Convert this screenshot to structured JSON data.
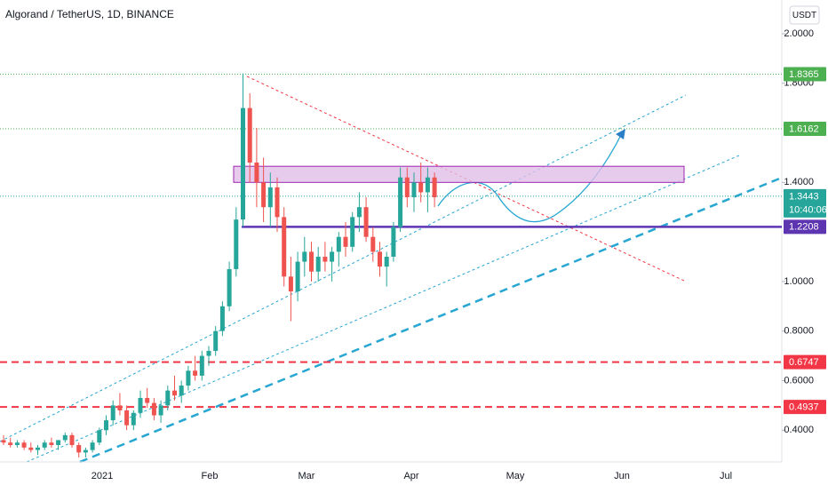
{
  "chart_data": {
    "type": "candlestick",
    "title": "Algorand / TetherUS, 1D, BINANCE",
    "currency": "USDT",
    "countdown": "10:40:06",
    "up_color": "#26a69a",
    "down_color": "#ef5350",
    "grid": false,
    "ylim": [
      0.272,
      2.136
    ],
    "yticks": [
      {
        "value": 0.4,
        "label": "0.4000"
      },
      {
        "value": 0.6,
        "label": "0.6000"
      },
      {
        "value": 0.8,
        "label": "0.8000"
      },
      {
        "value": 1.0,
        "label": "1.0000"
      },
      {
        "value": 1.4,
        "label": "1.4000"
      },
      {
        "value": 1.8,
        "label": "1.8000"
      },
      {
        "value": 2.0,
        "label": "2.0000"
      }
    ],
    "time_labels": [
      "2021",
      "Feb",
      "Mar",
      "Apr",
      "May",
      "Jun",
      "Jul"
    ],
    "zone": {
      "values": [
        1.4,
        1.465
      ],
      "color": "#e1bee7"
    },
    "levels": [
      {
        "value": 1.8365,
        "color": "#4caf50",
        "style": "dotted"
      },
      {
        "value": 1.6162,
        "color": "#4caf50",
        "style": "dotted"
      },
      {
        "value": 1.3443,
        "color": "#26a69a",
        "style": "dotted"
      },
      {
        "value": 1.2208,
        "color": "#5e35b1",
        "style": "solid"
      },
      {
        "value": 0.6747,
        "color": "#f23645",
        "style": "dashed"
      },
      {
        "value": 0.4937,
        "color": "#f23645",
        "style": "dashed"
      }
    ],
    "candles": [
      [
        0.36,
        0.38,
        0.34,
        0.35
      ],
      [
        0.35,
        0.37,
        0.33,
        0.34
      ],
      [
        0.34,
        0.36,
        0.33,
        0.35
      ],
      [
        0.35,
        0.36,
        0.32,
        0.33
      ],
      [
        0.33,
        0.35,
        0.31,
        0.32
      ],
      [
        0.32,
        0.34,
        0.3,
        0.33
      ],
      [
        0.33,
        0.36,
        0.32,
        0.35
      ],
      [
        0.35,
        0.37,
        0.33,
        0.34
      ],
      [
        0.34,
        0.36,
        0.32,
        0.36
      ],
      [
        0.36,
        0.39,
        0.35,
        0.38
      ],
      [
        0.38,
        0.39,
        0.33,
        0.34
      ],
      [
        0.34,
        0.35,
        0.29,
        0.31
      ],
      [
        0.31,
        0.33,
        0.29,
        0.32
      ],
      [
        0.32,
        0.36,
        0.31,
        0.35
      ],
      [
        0.35,
        0.41,
        0.34,
        0.4
      ],
      [
        0.4,
        0.46,
        0.38,
        0.44
      ],
      [
        0.44,
        0.52,
        0.42,
        0.5
      ],
      [
        0.5,
        0.55,
        0.46,
        0.48
      ],
      [
        0.48,
        0.5,
        0.4,
        0.42
      ],
      [
        0.42,
        0.48,
        0.4,
        0.47
      ],
      [
        0.47,
        0.56,
        0.45,
        0.53
      ],
      [
        0.53,
        0.57,
        0.49,
        0.51
      ],
      [
        0.51,
        0.53,
        0.44,
        0.46
      ],
      [
        0.46,
        0.52,
        0.43,
        0.5
      ],
      [
        0.5,
        0.58,
        0.48,
        0.56
      ],
      [
        0.56,
        0.62,
        0.52,
        0.54
      ],
      [
        0.54,
        0.6,
        0.51,
        0.58
      ],
      [
        0.58,
        0.66,
        0.56,
        0.64
      ],
      [
        0.64,
        0.7,
        0.6,
        0.62
      ],
      [
        0.62,
        0.72,
        0.6,
        0.7
      ],
      [
        0.7,
        0.74,
        0.66,
        0.72
      ],
      [
        0.72,
        0.82,
        0.7,
        0.8
      ],
      [
        0.8,
        0.92,
        0.78,
        0.9
      ],
      [
        0.9,
        1.08,
        0.88,
        1.05
      ],
      [
        1.05,
        1.3,
        1.02,
        1.25
      ],
      [
        1.25,
        1.84,
        1.22,
        1.7
      ],
      [
        1.7,
        1.76,
        1.4,
        1.48
      ],
      [
        1.48,
        1.62,
        1.3,
        1.4
      ],
      [
        1.4,
        1.5,
        1.24,
        1.3
      ],
      [
        1.3,
        1.44,
        1.22,
        1.38
      ],
      [
        1.38,
        1.42,
        1.2,
        1.26
      ],
      [
        1.26,
        1.3,
        0.98,
        1.02
      ],
      [
        1.02,
        1.1,
        0.84,
        0.96
      ],
      [
        0.96,
        1.12,
        0.92,
        1.08
      ],
      [
        1.08,
        1.18,
        1.02,
        1.12
      ],
      [
        1.12,
        1.16,
        1.0,
        1.04
      ],
      [
        1.04,
        1.14,
        1.0,
        1.1
      ],
      [
        1.1,
        1.16,
        1.04,
        1.08
      ],
      [
        1.08,
        1.14,
        1.0,
        1.12
      ],
      [
        1.12,
        1.2,
        1.06,
        1.18
      ],
      [
        1.18,
        1.24,
        1.1,
        1.14
      ],
      [
        1.14,
        1.28,
        1.12,
        1.26
      ],
      [
        1.26,
        1.36,
        1.2,
        1.3
      ],
      [
        1.3,
        1.34,
        1.16,
        1.18
      ],
      [
        1.18,
        1.22,
        1.08,
        1.12
      ],
      [
        1.12,
        1.16,
        1.02,
        1.06
      ],
      [
        1.06,
        1.12,
        0.98,
        1.1
      ],
      [
        1.1,
        1.24,
        1.08,
        1.22
      ],
      [
        1.22,
        1.46,
        1.2,
        1.42
      ],
      [
        1.42,
        1.46,
        1.3,
        1.34
      ],
      [
        1.34,
        1.44,
        1.28,
        1.4
      ],
      [
        1.4,
        1.48,
        1.32,
        1.36
      ],
      [
        1.36,
        1.46,
        1.28,
        1.42
      ],
      [
        1.42,
        1.44,
        1.3,
        1.34
      ]
    ]
  }
}
